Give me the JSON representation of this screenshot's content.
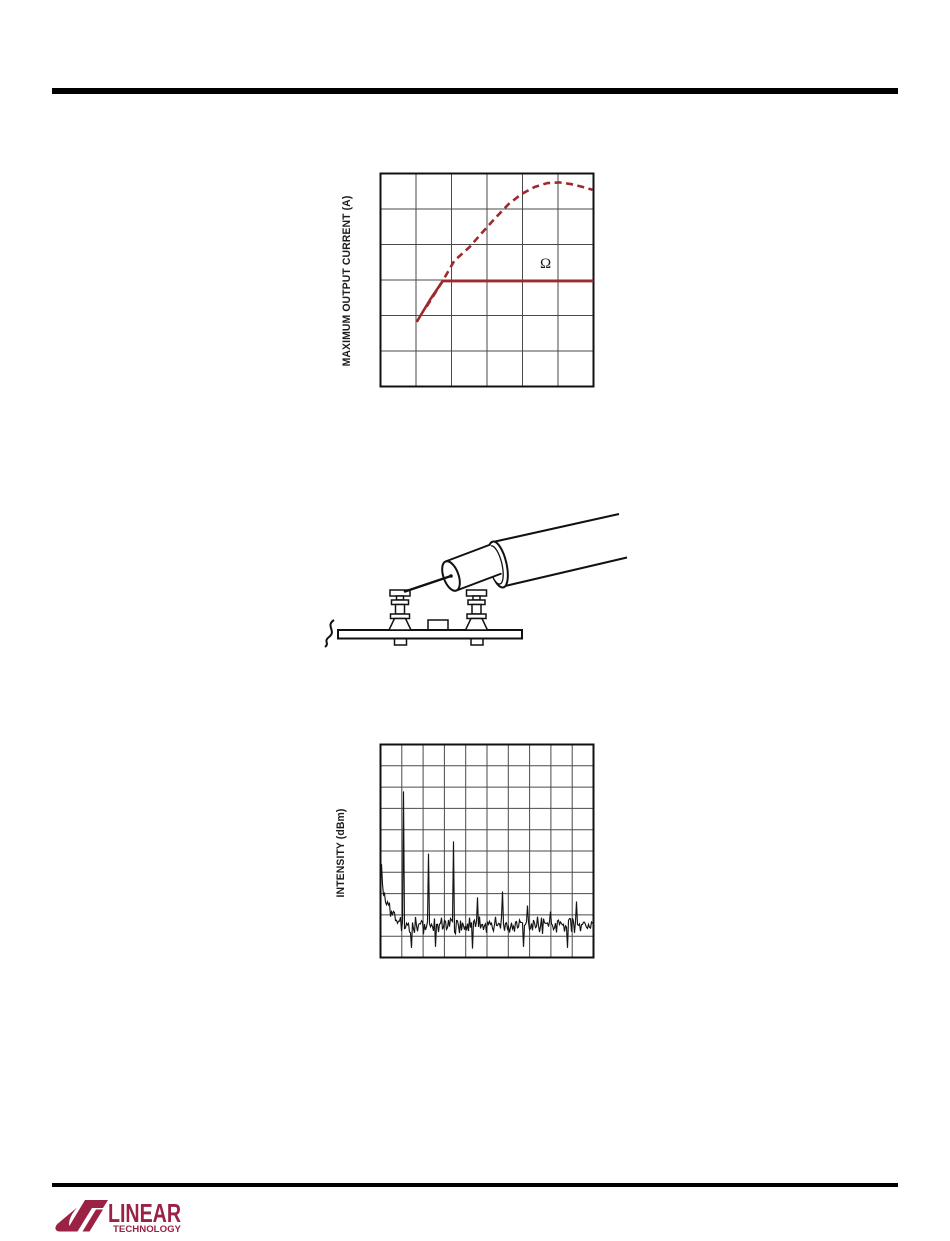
{
  "chart_data": [
    {
      "type": "line",
      "title": "",
      "xlabel": "",
      "ylabel": "MAXIMUM OUTPUT CURRENT (A)",
      "grid": {
        "cols": 6,
        "rows": 6,
        "tick_labels_visible": false
      },
      "axis_note": "axis tick labels not rendered in source page; coordinates in grid divisions from bottom-left",
      "annotations": [
        {
          "text": "Ω",
          "x_div": 4.55,
          "y_div": 3.45
        }
      ],
      "series": [
        {
          "name": "current-limited-solid-line",
          "style": "solid",
          "color": "#9e2a2d",
          "points_div": [
            [
              1.02,
              1.82
            ],
            [
              1.4,
              2.45
            ],
            [
              1.75,
              2.97
            ],
            [
              6.0,
              2.97
            ]
          ]
        },
        {
          "name": "maximum-current-dashed-curve",
          "style": "dashed",
          "color": "#9e2a2d",
          "points_div": [
            [
              1.3,
              2.25
            ],
            [
              1.75,
              2.97
            ],
            [
              2.08,
              3.54
            ],
            [
              2.51,
              3.93
            ],
            [
              2.85,
              4.32
            ],
            [
              3.21,
              4.72
            ],
            [
              3.61,
              5.14
            ],
            [
              3.97,
              5.42
            ],
            [
              4.34,
              5.62
            ],
            [
              4.7,
              5.73
            ],
            [
              5.04,
              5.75
            ],
            [
              5.38,
              5.7
            ],
            [
              5.66,
              5.63
            ],
            [
              5.97,
              5.54
            ]
          ]
        }
      ]
    },
    {
      "type": "line",
      "subtype": "spectrum",
      "title": "",
      "xlabel": "",
      "ylabel": "INTENSITY (dBm)",
      "grid": {
        "cols": 10,
        "rows": 10,
        "tick_labels_visible": false
      },
      "noise": {
        "floor_div": 1.5,
        "band_div": 0.32,
        "color": "#141414",
        "left_ramp": {
          "height_div": 4.1,
          "decay_div": 0.3
        }
      },
      "spikes_div": [
        [
          1.09,
          7.8
        ],
        [
          2.27,
          4.88
        ],
        [
          3.44,
          5.45
        ],
        [
          4.57,
          2.82
        ],
        [
          5.74,
          3.1
        ],
        [
          6.91,
          2.44
        ],
        [
          7.99,
          2.16
        ],
        [
          9.21,
          2.63
        ]
      ],
      "downspikes_div": [
        [
          1.45,
          0.45
        ],
        [
          2.6,
          0.5
        ],
        [
          4.3,
          0.42
        ],
        [
          6.7,
          0.5
        ],
        [
          8.8,
          0.45
        ]
      ]
    }
  ],
  "logo": {
    "company": "LINEAR",
    "division": "TECHNOLOGY",
    "color": "#9a2245"
  },
  "colors": {
    "rule": "#000000",
    "grid_line": "#4a4a4a",
    "plot_border": "#111111",
    "curve_red": "#9e2a2d",
    "illustration_stroke": "#111111"
  }
}
